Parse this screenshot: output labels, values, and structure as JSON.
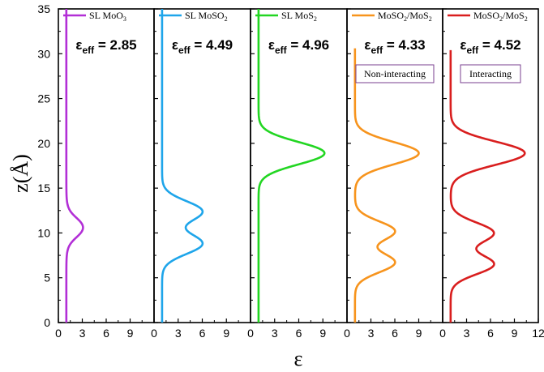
{
  "chart_data": {
    "type": "line",
    "ylabel": "z(Å)",
    "xlabel": "ε",
    "ylim": [
      0,
      35
    ],
    "yticks": [
      0,
      5,
      10,
      15,
      20,
      25,
      30,
      35
    ],
    "panels": [
      {
        "id": "moo3",
        "legend_base": "SL MoO",
        "legend_sub": "3",
        "eps_label": "ε",
        "eps_sub": "eff",
        "eps_value": "= 2.85",
        "color": "#b22fd6",
        "xlim": [
          0,
          12
        ],
        "xticks": [
          0,
          3,
          6,
          9
        ],
        "baseline": 1.0,
        "z_top": 35,
        "features": [
          {
            "type": "plateau",
            "z1": 9.6,
            "z2": 11.6,
            "amp": 2.9,
            "width": 0.55
          }
        ]
      },
      {
        "id": "moso2",
        "legend_base": "SL MoSO",
        "legend_sub": "2",
        "eps_label": "ε",
        "eps_sub": "eff",
        "eps_value": "= 4.49",
        "color": "#1ea5ea",
        "xlim": [
          0,
          12
        ],
        "xticks": [
          0,
          3,
          6,
          9
        ],
        "baseline": 1.0,
        "z_top": 35,
        "features": [
          {
            "type": "gauss",
            "z": 8.8,
            "amp": 5.0,
            "sigma": 1.15
          },
          {
            "type": "gauss",
            "z": 12.4,
            "amp": 5.0,
            "sigma": 1.15
          }
        ]
      },
      {
        "id": "mos2",
        "legend_base": "SL MoS",
        "legend_sub": "2",
        "eps_label": "ε",
        "eps_sub": "eff",
        "eps_value": "= 4.96",
        "color": "#22d622",
        "xlim": [
          0,
          12
        ],
        "xticks": [
          0,
          3,
          6,
          9
        ],
        "baseline": 1.0,
        "z_top": 35,
        "features": [
          {
            "type": "gauss",
            "z": 18.9,
            "amp": 8.2,
            "sigma": 1.25
          }
        ]
      },
      {
        "id": "noninteracting",
        "legend_base": "MoSO",
        "legend_sub": "2",
        "legend_rest": "/MoS",
        "legend_sub2": "2",
        "eps_label": "ε",
        "eps_sub": "eff",
        "eps_value": "= 4.33",
        "annotation": "Non-interacting",
        "color": "#f7941d",
        "xlim": [
          0,
          12
        ],
        "xticks": [
          0,
          3,
          6,
          9
        ],
        "baseline": 1.0,
        "z_top": 30.6,
        "features": [
          {
            "type": "gauss",
            "z": 6.7,
            "amp": 5.0,
            "sigma": 1.1
          },
          {
            "type": "gauss",
            "z": 10.2,
            "amp": 5.0,
            "sigma": 1.1
          },
          {
            "type": "gauss",
            "z": 18.9,
            "amp": 8.0,
            "sigma": 1.25
          }
        ]
      },
      {
        "id": "interacting",
        "legend_base": "MoSO",
        "legend_sub": "2",
        "legend_rest": "/MoS",
        "legend_sub2": "2",
        "eps_label": "ε",
        "eps_sub": "eff",
        "eps_value": "= 4.52",
        "annotation": "Interacting",
        "color": "#d91e1e",
        "xlim": [
          0,
          12
        ],
        "xticks": [
          0,
          3,
          6,
          9,
          12
        ],
        "baseline": 1.0,
        "z_top": 30.4,
        "features": [
          {
            "type": "gauss",
            "z": 6.5,
            "amp": 5.4,
            "sigma": 1.1
          },
          {
            "type": "gauss",
            "z": 10.0,
            "amp": 5.4,
            "sigma": 1.15
          },
          {
            "type": "gauss",
            "z": 18.9,
            "amp": 9.3,
            "sigma": 1.3
          }
        ]
      }
    ]
  }
}
